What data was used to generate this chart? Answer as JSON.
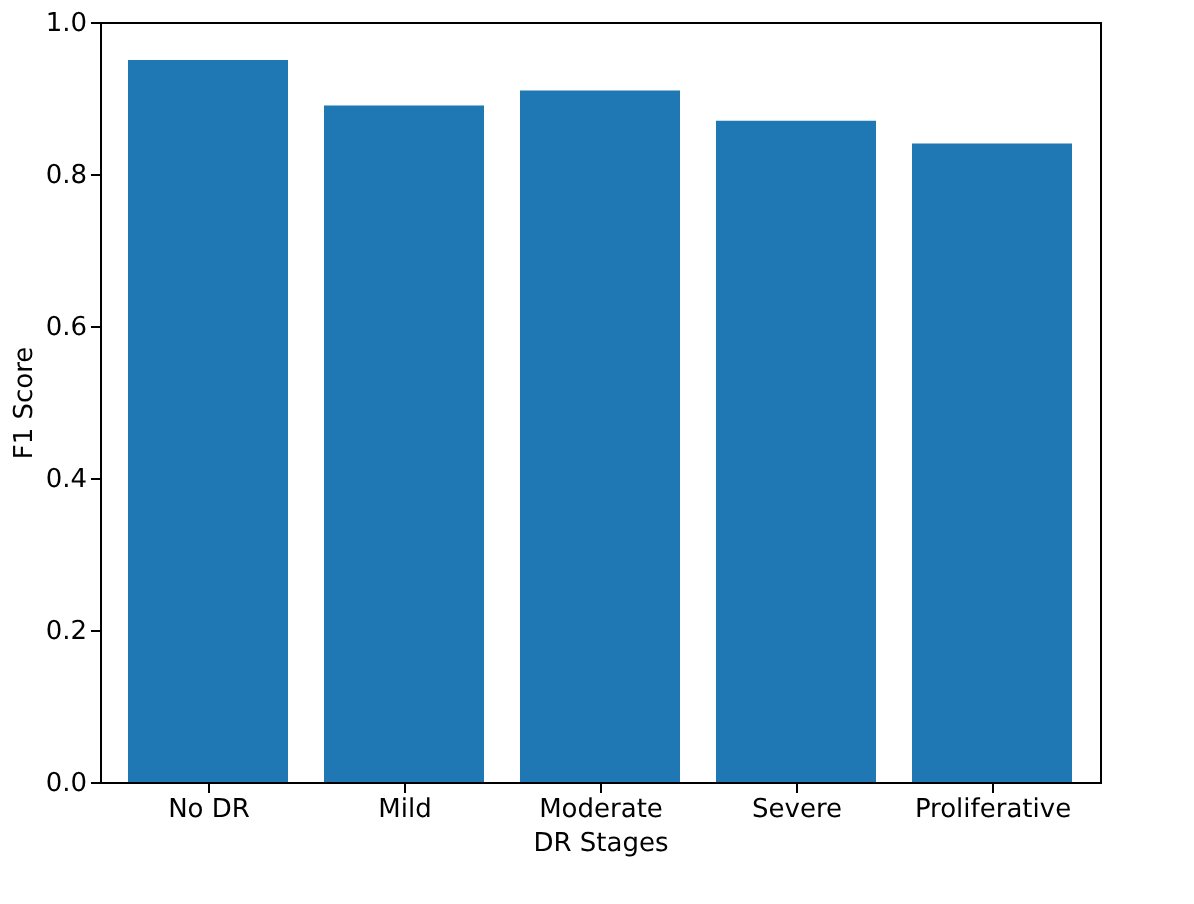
{
  "chart_data": {
    "type": "bar",
    "categories": [
      "No DR",
      "Mild",
      "Moderate",
      "Severe",
      "Proliferative"
    ],
    "values": [
      0.95,
      0.89,
      0.91,
      0.87,
      0.84
    ],
    "color": "#1f77b4",
    "xlabel": "DR Stages",
    "ylabel": "F1 Score",
    "ylim": [
      0,
      1.0
    ],
    "yticks": [
      {
        "value": 0,
        "label": "0.0"
      },
      {
        "value": 0.2,
        "label": "0.2"
      },
      {
        "value": 0.4,
        "label": "0.4"
      },
      {
        "value": 0.6,
        "label": "0.6"
      },
      {
        "value": 0.8,
        "label": "0.8"
      },
      {
        "value": 1.0,
        "label": "1.0"
      }
    ],
    "grid": false
  }
}
